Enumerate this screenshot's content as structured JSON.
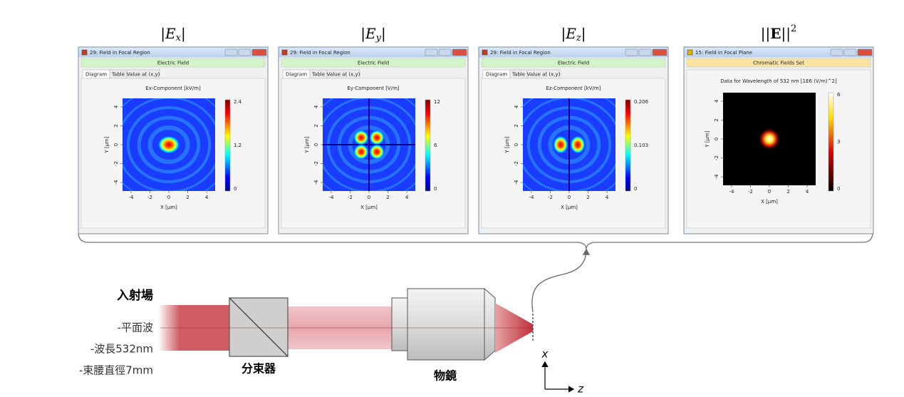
{
  "panels": [
    {
      "header": {
        "open": "|",
        "symbol": "E",
        "subscript": "x",
        "close": "|"
      },
      "window_title": "29: Field in Focal Region",
      "subtitle": "Electric Field",
      "tabs": [
        "Diagram",
        "Table",
        "Value at (x,y)"
      ],
      "plot_title": "Ex-Component  [kV/m]",
      "colorbar_ticks": [
        2.4,
        1.2,
        0
      ],
      "x_ticks": [
        -4,
        -2,
        0,
        2,
        4
      ],
      "y_ticks": [
        4,
        2,
        0,
        -2,
        -4
      ],
      "x_label": "X [µm]",
      "y_label": "Y [µm]"
    },
    {
      "header": {
        "open": "|",
        "symbol": "E",
        "subscript": "y",
        "close": "|"
      },
      "window_title": "29: Field in Focal Region",
      "subtitle": "Electric Field",
      "tabs": [
        "Diagram",
        "Table",
        "Value at (x,y)"
      ],
      "plot_title": "Ey-Component  [V/m]",
      "colorbar_ticks": [
        12,
        6,
        0
      ],
      "x_ticks": [
        -4,
        -2,
        0,
        2,
        4
      ],
      "y_ticks": [
        4,
        2,
        0,
        -2,
        -4
      ],
      "x_label": "X [µm]",
      "y_label": "Y [µm]"
    },
    {
      "header": {
        "open": "|",
        "symbol": "E",
        "subscript": "z",
        "close": "|"
      },
      "window_title": "29: Field in Focal Region",
      "subtitle": "Electric Field",
      "tabs": [
        "Diagram",
        "Table",
        "Value at (x,y)"
      ],
      "plot_title": "Ez-Component  [kV/m]",
      "colorbar_ticks": [
        0.206,
        0.103,
        0
      ],
      "x_ticks": [
        -4,
        -2,
        0,
        2,
        4
      ],
      "y_ticks": [
        4,
        2,
        0,
        -2,
        -4
      ],
      "x_label": "X [µm]",
      "y_label": "Y [µm]"
    },
    {
      "header": {
        "open": "||",
        "symbol": "E",
        "close": "||",
        "superscript": "2"
      },
      "window_title": "15: Field in Focal Plane",
      "subtitle": "Chromatic Fields Set",
      "plot_title": "Data for Wavelength of 532 nm  [1E6 (V/m)^2]",
      "colorbar_ticks": [
        6,
        3,
        0
      ],
      "x_ticks": [
        -4,
        -2,
        0,
        2,
        4
      ],
      "y_ticks": [
        4,
        2,
        0,
        -2,
        -4
      ],
      "x_label": "X [µm]",
      "y_label": "Y [µm]"
    }
  ],
  "setup": {
    "input_title": "入射場",
    "input_lines": [
      "-平面波",
      "-波長532nm",
      "-束腰直徑7mm"
    ],
    "beam_splitter": "分束器",
    "objective": "物鏡",
    "axis_x": "x",
    "axis_z": "z"
  }
}
